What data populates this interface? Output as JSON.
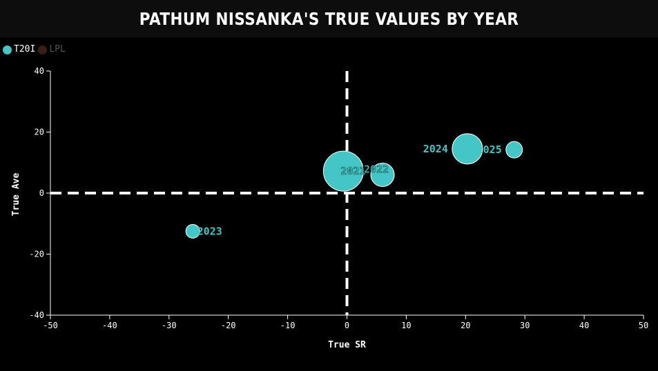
{
  "chart_data": {
    "type": "scatter",
    "title": "Pathum Nissanka's True Values by Year",
    "xlabel": "True SR",
    "ylabel": "True Ave",
    "xlim": [
      -50,
      50
    ],
    "ylim": [
      -40,
      40
    ],
    "xticks": [
      -50,
      -40,
      -30,
      -20,
      -10,
      0,
      10,
      20,
      30,
      40,
      50
    ],
    "yticks": [
      -40,
      -20,
      0,
      20,
      40
    ],
    "legend": {
      "position": "top-left",
      "items": [
        {
          "name": "T20I",
          "color": "#44c6c6",
          "active": true
        },
        {
          "name": "LPL",
          "color": "#3a1e19",
          "active": false
        }
      ]
    },
    "reference_lines": {
      "x": 0,
      "y": 0,
      "style": "dashed",
      "color": "#ffffff"
    },
    "series": [
      {
        "name": "T20I",
        "color": "#44c6c6",
        "points": [
          {
            "label": "2021",
            "x": -0.6,
            "y": 7.2,
            "size": 29,
            "label_side": "right"
          },
          {
            "label": "2022",
            "x": 6,
            "y": 6,
            "size": 17,
            "label_side": "inside"
          },
          {
            "label": "2023",
            "x": -26,
            "y": -12.5,
            "size": 10,
            "label_side": "right"
          },
          {
            "label": "2024",
            "x": 20.3,
            "y": 14.5,
            "size": 22,
            "label_side": "left"
          },
          {
            "label": "2025",
            "x": 28.2,
            "y": 14.2,
            "size": 12,
            "label_side": "left"
          }
        ]
      }
    ]
  }
}
